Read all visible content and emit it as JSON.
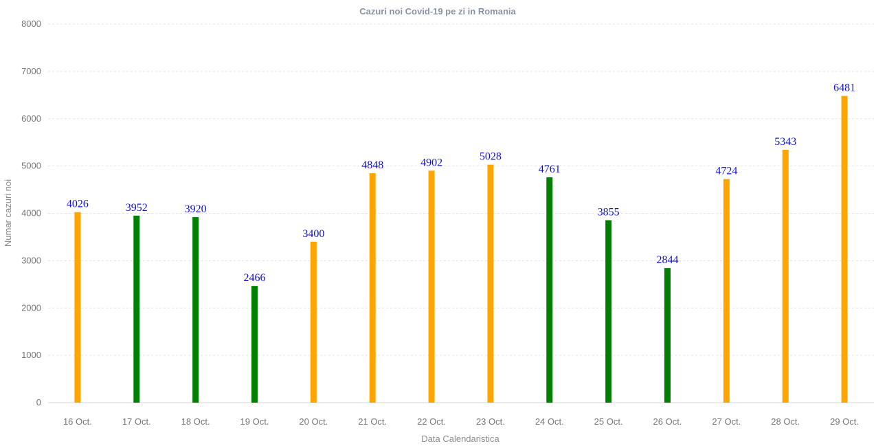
{
  "chart_data": {
    "type": "bar",
    "title": "Cazuri noi Covid-19 pe zi in Romania",
    "xlabel": "Data Calendaristica",
    "ylabel": "Numar cazuri noi",
    "ylim": [
      0,
      8000
    ],
    "yticks": [
      0,
      1000,
      2000,
      3000,
      4000,
      5000,
      6000,
      7000,
      8000
    ],
    "grid": true,
    "categories": [
      "16 Oct.",
      "17 Oct.",
      "18 Oct.",
      "19 Oct.",
      "20 Oct.",
      "21 Oct.",
      "22 Oct.",
      "23 Oct.",
      "24 Oct.",
      "25 Oct.",
      "26 Oct.",
      "27 Oct.",
      "28 Oct.",
      "29 Oct."
    ],
    "values": [
      4026,
      3952,
      3920,
      2466,
      3400,
      4848,
      4902,
      5028,
      4761,
      3855,
      2844,
      4724,
      5343,
      6481
    ],
    "bar_colors": [
      "#ffa500",
      "#008000",
      "#008000",
      "#008000",
      "#ffa500",
      "#ffa500",
      "#ffa500",
      "#ffa500",
      "#008000",
      "#008000",
      "#008000",
      "#ffa500",
      "#ffa500",
      "#ffa500"
    ],
    "data_labels": [
      "4026",
      "3952",
      "3920",
      "2466",
      "3400",
      "4848",
      "4902",
      "5028",
      "4761",
      "3855",
      "2844",
      "4724",
      "5343",
      "6481"
    ]
  }
}
